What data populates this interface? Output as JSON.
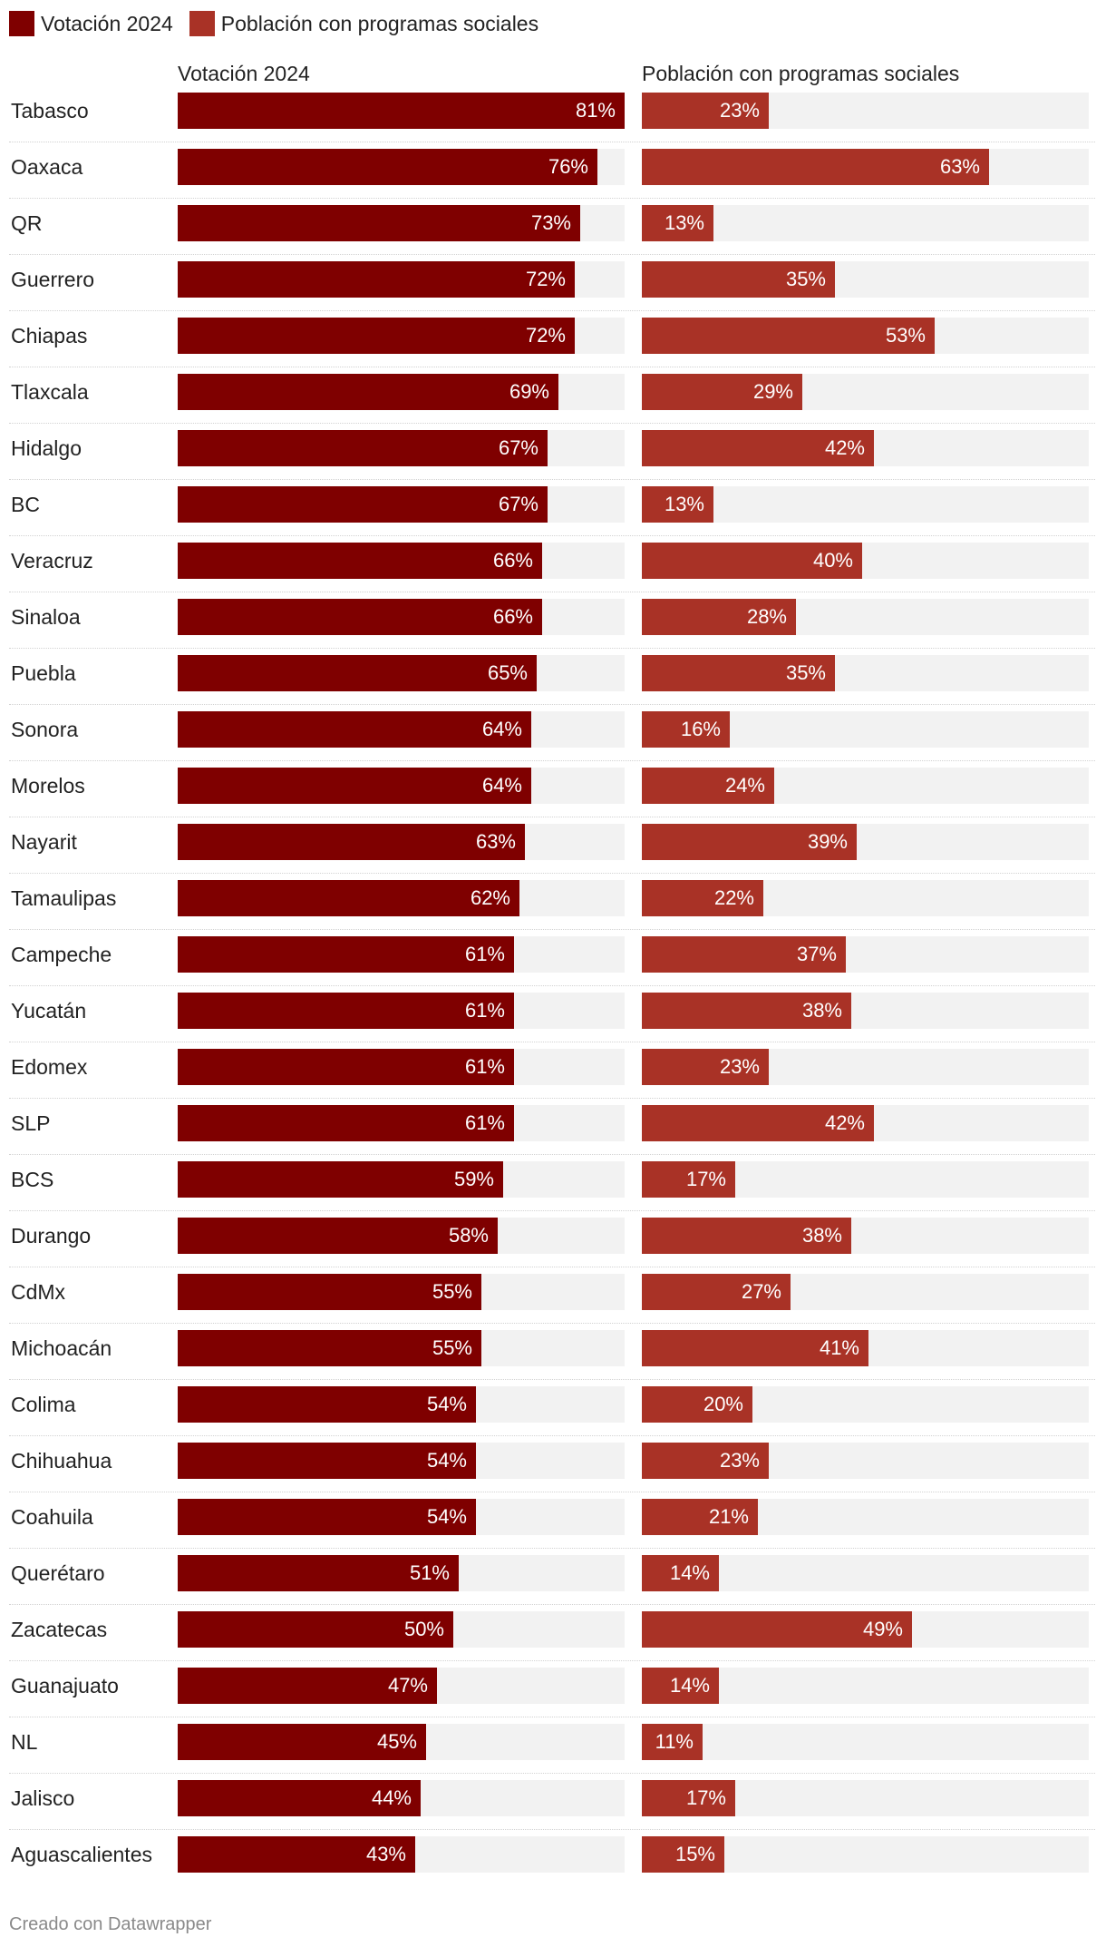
{
  "legend": [
    {
      "label": "Votación 2024",
      "color": "#7f0000"
    },
    {
      "label": "Población con programas sociales",
      "color": "#a93226"
    }
  ],
  "footer": "Creado con Datawrapper",
  "chart_data": {
    "type": "bar",
    "orientation": "horizontal",
    "categories": [
      "Tabasco",
      "Oaxaca",
      "QR",
      "Guerrero",
      "Chiapas",
      "Tlaxcala",
      "Hidalgo",
      "BC",
      "Veracruz",
      "Sinaloa",
      "Puebla",
      "Sonora",
      "Morelos",
      "Nayarit",
      "Tamaulipas",
      "Campeche",
      "Yucatán",
      "Edomex",
      "SLP",
      "BCS",
      "Durango",
      "CdMx",
      "Michoacán",
      "Colima",
      "Chihuahua",
      "Coahuila",
      "Querétaro",
      "Zacatecas",
      "Guanajuato",
      "NL",
      "Jalisco",
      "Aguascalientes"
    ],
    "series": [
      {
        "name": "Votación 2024",
        "color": "#7f0000",
        "values": [
          81,
          76,
          73,
          72,
          72,
          69,
          67,
          67,
          66,
          66,
          65,
          64,
          64,
          63,
          62,
          61,
          61,
          61,
          61,
          59,
          58,
          55,
          55,
          54,
          54,
          54,
          51,
          50,
          47,
          45,
          44,
          43
        ]
      },
      {
        "name": "Población con programas sociales",
        "color": "#a93226",
        "values": [
          23,
          63,
          13,
          35,
          53,
          29,
          42,
          13,
          40,
          28,
          35,
          16,
          24,
          39,
          22,
          37,
          38,
          23,
          42,
          17,
          38,
          27,
          41,
          20,
          23,
          21,
          14,
          49,
          14,
          11,
          17,
          15
        ]
      }
    ],
    "xlim": [
      0,
      81
    ],
    "value_suffix": "%"
  }
}
